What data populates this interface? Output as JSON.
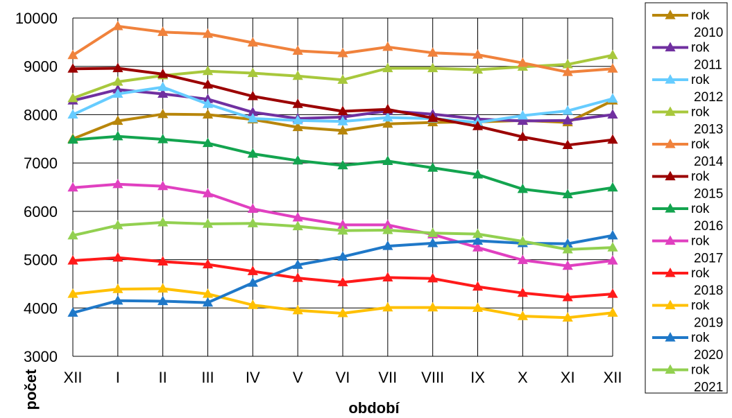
{
  "chart_data": {
    "type": "line",
    "xlabel": "období",
    "ylabel": "počet",
    "ylim": [
      3000,
      10000
    ],
    "yticks": [
      3000,
      4000,
      5000,
      6000,
      7000,
      8000,
      9000,
      10000
    ],
    "categories": [
      "XII",
      "I",
      "II",
      "III",
      "IV",
      "V",
      "VI",
      "VII",
      "VIII",
      "IX",
      "X",
      "XI",
      "XII"
    ],
    "grid": "both",
    "legend_position": "right",
    "series": [
      {
        "name": "rok 2010",
        "color": "#b8860b",
        "marker": "triangle",
        "values": [
          7500,
          7870,
          8010,
          8000,
          7900,
          7740,
          7670,
          7810,
          7840,
          7850,
          7880,
          7840,
          8290
        ]
      },
      {
        "name": "rok 2011",
        "color": "#7030a0",
        "marker": "triangle",
        "values": [
          8290,
          8520,
          8430,
          8320,
          8050,
          7920,
          7950,
          8080,
          8010,
          7910,
          7870,
          7880,
          8000
        ]
      },
      {
        "name": "rok 2012",
        "color": "#66ccff",
        "marker": "triangle",
        "values": [
          8000,
          8430,
          8570,
          8220,
          7920,
          7880,
          7860,
          7940,
          7920,
          7840,
          7980,
          8080,
          8330
        ]
      },
      {
        "name": "rok 2013",
        "color": "#a8c83c",
        "marker": "triangle",
        "values": [
          8340,
          8680,
          8810,
          8900,
          8860,
          8800,
          8720,
          8960,
          8960,
          8930,
          8990,
          9040,
          9230
        ]
      },
      {
        "name": "rok 2014",
        "color": "#f0823c",
        "marker": "triangle",
        "values": [
          9230,
          9830,
          9710,
          9670,
          9490,
          9320,
          9270,
          9400,
          9280,
          9240,
          9070,
          8880,
          8950
        ]
      },
      {
        "name": "rok 2015",
        "color": "#9b0000",
        "marker": "triangle",
        "values": [
          8950,
          8960,
          8840,
          8620,
          8380,
          8220,
          8070,
          8110,
          7930,
          7760,
          7540,
          7370,
          7480
        ]
      },
      {
        "name": "rok 2016",
        "color": "#13a44f",
        "marker": "triangle",
        "values": [
          7480,
          7550,
          7490,
          7410,
          7190,
          7050,
          6950,
          7040,
          6900,
          6760,
          6460,
          6350,
          6490
        ]
      },
      {
        "name": "rok 2017",
        "color": "#e040c0",
        "marker": "triangle",
        "values": [
          6490,
          6560,
          6520,
          6370,
          6050,
          5870,
          5720,
          5720,
          5520,
          5250,
          4990,
          4870,
          4980
        ]
      },
      {
        "name": "rok 2018",
        "color": "#ff1a1a",
        "marker": "triangle",
        "values": [
          4980,
          5040,
          4960,
          4900,
          4760,
          4620,
          4530,
          4630,
          4610,
          4440,
          4310,
          4220,
          4290
        ]
      },
      {
        "name": "rok 2019",
        "color": "#ffc000",
        "marker": "triangle",
        "values": [
          4290,
          4390,
          4400,
          4290,
          4060,
          3950,
          3890,
          4010,
          4010,
          4000,
          3830,
          3800,
          3900
        ]
      },
      {
        "name": "rok 2020",
        "color": "#1f78c8",
        "marker": "triangle",
        "values": [
          3900,
          4150,
          4140,
          4110,
          4520,
          4890,
          5060,
          5280,
          5340,
          5390,
          5340,
          5330,
          5500
        ]
      },
      {
        "name": "rok 2021",
        "color": "#92d050",
        "marker": "triangle",
        "values": [
          5500,
          5710,
          5770,
          5740,
          5750,
          5690,
          5600,
          5610,
          5550,
          5530,
          5380,
          5210,
          5250
        ]
      }
    ]
  }
}
